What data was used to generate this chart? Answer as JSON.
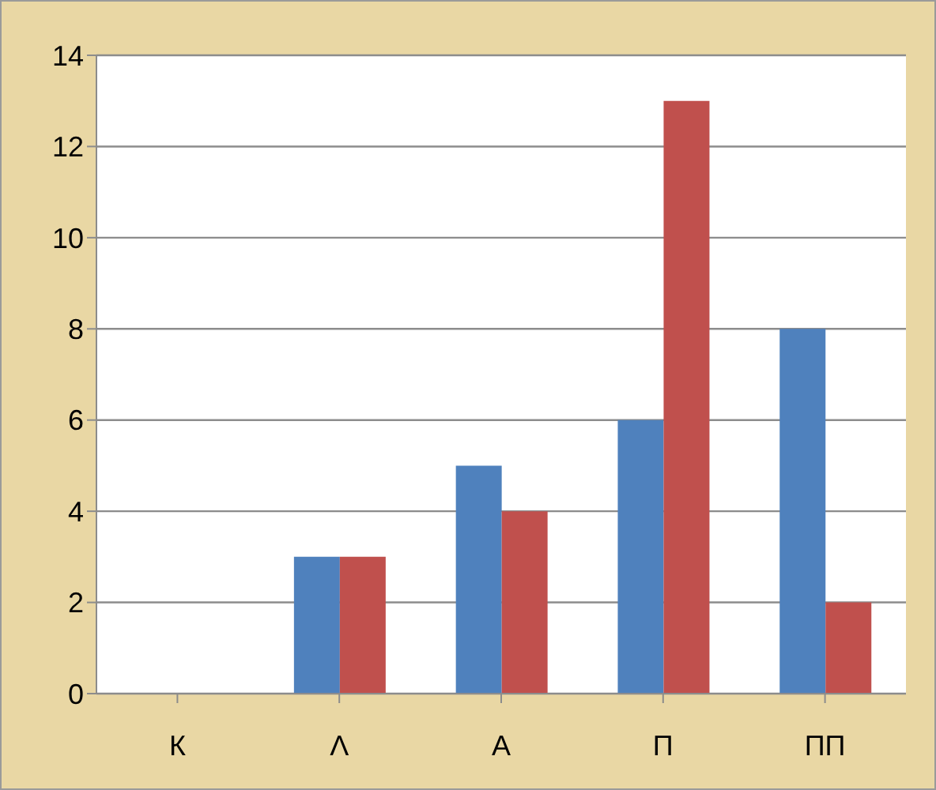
{
  "chart_data": {
    "type": "bar",
    "categories": [
      "К",
      "Λ",
      "А",
      "П",
      "ПП"
    ],
    "series": [
      {
        "color": "#4f81bd",
        "values": [
          0,
          3,
          5,
          6,
          8
        ]
      },
      {
        "color": "#c0504d",
        "values": [
          0,
          3,
          4,
          13,
          2
        ]
      }
    ],
    "ylim": [
      0,
      14
    ],
    "yticks": [
      0,
      2,
      4,
      6,
      8,
      10,
      12,
      14
    ],
    "grid": "y",
    "legend": false
  }
}
